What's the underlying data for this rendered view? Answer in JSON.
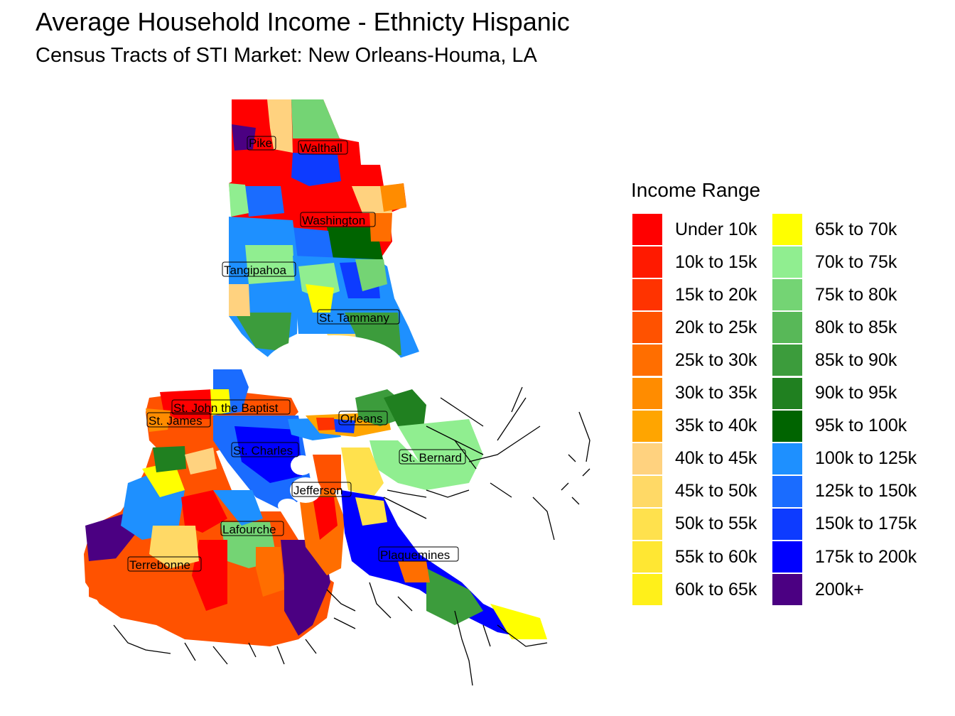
{
  "title": "Average Household Income - Ethnicty Hispanic",
  "subtitle": "Census Tracts of STI Market: New Orleans-Houma, LA",
  "legend": {
    "title": "Income Range",
    "items": [
      {
        "label": "Under 10k",
        "color": "#ff0000"
      },
      {
        "label": "10k to 15k",
        "color": "#ff1a00"
      },
      {
        "label": "15k to 20k",
        "color": "#ff3300"
      },
      {
        "label": "20k to 25k",
        "color": "#ff5200"
      },
      {
        "label": "25k to 30k",
        "color": "#ff6e00"
      },
      {
        "label": "30k to 35k",
        "color": "#ff8c00"
      },
      {
        "label": "35k to 40k",
        "color": "#ffa500"
      },
      {
        "label": "40k to 45k",
        "color": "#ffd27f"
      },
      {
        "label": "45k to 50k",
        "color": "#ffd966"
      },
      {
        "label": "50k to 55k",
        "color": "#ffe14d"
      },
      {
        "label": "55k to 60k",
        "color": "#ffe733"
      },
      {
        "label": "60k to 65k",
        "color": "#fff01a"
      },
      {
        "label": "65k to 70k",
        "color": "#ffff00"
      },
      {
        "label": "70k to 75k",
        "color": "#90ee90"
      },
      {
        "label": "75k to 80k",
        "color": "#74d474"
      },
      {
        "label": "80k to 85k",
        "color": "#58b858"
      },
      {
        "label": "85k to 90k",
        "color": "#3c9c3c"
      },
      {
        "label": "90k to 95k",
        "color": "#208020"
      },
      {
        "label": "95k to 100k",
        "color": "#006400"
      },
      {
        "label": "100k to 125k",
        "color": "#1e90ff"
      },
      {
        "label": "125k to 150k",
        "color": "#1a6cff"
      },
      {
        "label": "150k to 175k",
        "color": "#0d3bff"
      },
      {
        "label": "175k to 200k",
        "color": "#0000ff"
      },
      {
        "label": "200k+",
        "color": "#4b0082"
      }
    ]
  },
  "parishes": [
    "Pike",
    "Walthall",
    "Washington",
    "Tangipahoa",
    "St. Tammany",
    "St. John the Baptist",
    "St. James",
    "Orleans",
    "St. Charles",
    "St. Bernard",
    "Jefferson",
    "Lafourche",
    "Terrebonne",
    "Plaquemines"
  ]
}
